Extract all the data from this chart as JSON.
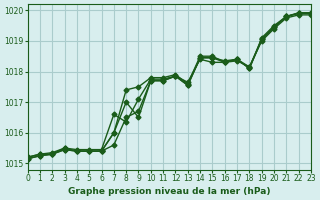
{
  "title": "Graphe pression niveau de la mer (hPa)",
  "xlim": [
    0,
    23
  ],
  "ylim": [
    1014.8,
    1020.2
  ],
  "xticks": [
    0,
    1,
    2,
    3,
    4,
    5,
    6,
    7,
    8,
    9,
    10,
    11,
    12,
    13,
    14,
    15,
    16,
    17,
    18,
    19,
    20,
    21,
    22,
    23
  ],
  "yticks": [
    1015,
    1016,
    1017,
    1018,
    1019,
    1020
  ],
  "background_color": "#d8eeee",
  "grid_color": "#aacccc",
  "line_color": "#1a5c1a",
  "series": [
    [
      1015.2,
      1015.3,
      1015.3,
      1015.5,
      1015.4,
      1015.4,
      1015.4,
      1016.0,
      1017.4,
      1017.5,
      1017.8,
      1017.8,
      1017.9,
      1017.6,
      1018.5,
      1018.5,
      1018.3,
      1018.4,
      1018.1,
      1019.1,
      1019.5,
      1019.8,
      1019.9,
      1019.9
    ],
    [
      1015.2,
      1015.3,
      1015.35,
      1015.5,
      1015.45,
      1015.45,
      1015.45,
      1016.6,
      1016.35,
      1017.1,
      1017.75,
      1017.75,
      1017.85,
      1017.65,
      1018.4,
      1018.3,
      1018.3,
      1018.35,
      1018.15,
      1019.0,
      1019.4,
      1019.75,
      1019.85,
      1019.85
    ],
    [
      1015.15,
      1015.25,
      1015.3,
      1015.45,
      1015.4,
      1015.4,
      1015.4,
      1015.6,
      1016.5,
      1016.7,
      1017.7,
      1017.7,
      1017.85,
      1017.55,
      1018.45,
      1018.45,
      1018.3,
      1018.4,
      1018.1,
      1019.05,
      1019.45,
      1019.8,
      1019.92,
      1019.92
    ],
    [
      1015.15,
      1015.25,
      1015.3,
      1015.45,
      1015.4,
      1015.4,
      1015.4,
      1016.0,
      1017.0,
      1016.5,
      1017.7,
      1017.7,
      1017.85,
      1017.55,
      1018.45,
      1018.45,
      1018.35,
      1018.4,
      1018.15,
      1019.05,
      1019.45,
      1019.8,
      1019.9,
      1019.9
    ]
  ]
}
